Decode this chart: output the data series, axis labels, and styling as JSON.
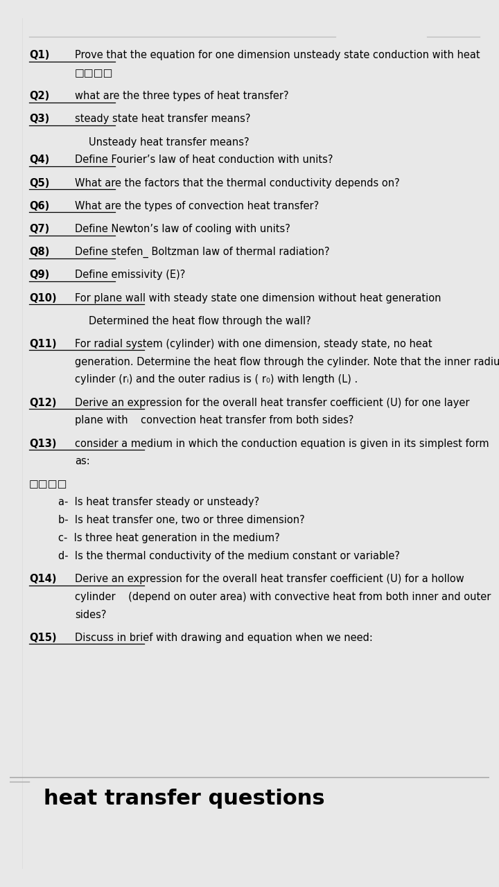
{
  "bg_color": "#e8e8e8",
  "page_bg": "#ffffff",
  "title": "heat transfer questions",
  "title_font": "Courier New",
  "title_fontsize": 22,
  "title_color": "#000000",
  "body_font": "DejaVu Sans",
  "body_fontsize": 10.5,
  "questions": [
    {
      "label": "Q1)",
      "text": "Prove that the equation for one dimension unsteady state conduction with heat\n□□□□",
      "indent": 0,
      "extra_after": true
    },
    {
      "label": "Q2)",
      "text": "what are the three types of heat transfer?",
      "indent": 0,
      "extra_after": false
    },
    {
      "label": "Q3)",
      "text": "steady state heat transfer means?",
      "indent": 0,
      "extra_after": false
    },
    {
      "label": "",
      "text": "Unsteady heat transfer means?",
      "indent": 2,
      "extra_after": false
    },
    {
      "label": "Q4)",
      "text": "Define Fourier’s law of heat conduction with units?",
      "indent": 0,
      "extra_after": false
    },
    {
      "label": "Q5)",
      "text": "What are the factors that the thermal conductivity depends on?",
      "indent": 0,
      "extra_after": false
    },
    {
      "label": "Q6)",
      "text": "What are the types of convection heat transfer?",
      "indent": 0,
      "extra_after": false
    },
    {
      "label": "Q7)",
      "text": "Define Newton’s law of cooling with units?",
      "indent": 0,
      "extra_after": false
    },
    {
      "label": "Q8)",
      "text": "Define stefen_ Boltzman law of thermal radiation?",
      "indent": 0,
      "extra_after": false
    },
    {
      "label": "Q9)",
      "text": "Define emissivity (E)?",
      "indent": 0,
      "extra_after": false
    },
    {
      "label": "Q10)",
      "text": "For plane wall with steady state one dimension without heat generation",
      "indent": 0,
      "extra_after": false
    },
    {
      "label": "",
      "text": "Determined the heat flow through the wall?",
      "indent": 2,
      "extra_after": true
    },
    {
      "label": "Q11)",
      "text": "For radial system (cylinder) with one dimension, steady state, no heat\ngeneration. Determine the heat flow through the cylinder. Note that the inner radius of\ncylinder (rᵢ) and the outer radius is ( r₀) with length (L) .",
      "indent": 0,
      "extra_after": true
    },
    {
      "label": "Q12)",
      "text": "Derive an expression for the overall heat transfer coefficient (U) for one layer\nplane with    convection heat transfer from both sides?",
      "indent": 0,
      "extra_after": true
    },
    {
      "label": "Q13)",
      "text": "consider a medium in which the conduction equation is given in its simplest form\nas:",
      "indent": 0,
      "extra_after": false
    },
    {
      "label": "",
      "text": "□□□□",
      "indent": 0,
      "extra_after": false
    },
    {
      "label": "",
      "text": "a-  Is heat transfer steady or unsteady?",
      "indent": 1,
      "extra_after": false
    },
    {
      "label": "",
      "text": "b-  Is heat transfer one, two or three dimension?",
      "indent": 1,
      "extra_after": false
    },
    {
      "label": "",
      "text": "c-  Is three heat generation in the medium?",
      "indent": 1,
      "extra_after": false
    },
    {
      "label": "",
      "text": "d-  Is the thermal conductivity of the medium constant or variable?",
      "indent": 1,
      "extra_after": true
    },
    {
      "label": "Q14)",
      "text": "Derive an expression for the overall heat transfer coefficient (U) for a hollow\ncylinder    (depend on outer area) with convective heat from both inner and outer\nsides?",
      "indent": 0,
      "extra_after": true
    },
    {
      "label": "Q15)",
      "text": "Discuss in brief with drawing and equation when we need:",
      "indent": 0,
      "extra_after": false
    }
  ]
}
